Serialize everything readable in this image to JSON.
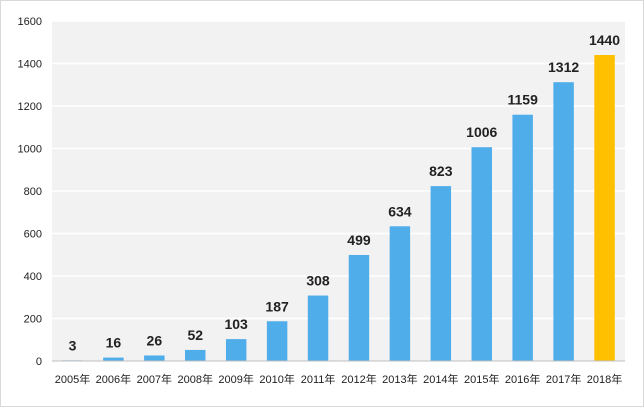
{
  "chart_data": {
    "type": "bar",
    "categories": [
      "2005年",
      "2006年",
      "2007年",
      "2008年",
      "2009年",
      "2010年",
      "2011年",
      "2012年",
      "2013年",
      "2014年",
      "2015年",
      "2016年",
      "2017年",
      "2018年"
    ],
    "values": [
      3,
      16,
      26,
      52,
      103,
      187,
      308,
      499,
      634,
      823,
      1006,
      1159,
      1312,
      1440
    ],
    "data_labels": [
      "3",
      "16",
      "26",
      "52",
      "103",
      "187",
      "308",
      "499",
      "634",
      "823",
      "1006",
      "1159",
      "1312",
      "1440"
    ],
    "yticks": [
      0,
      200,
      400,
      600,
      800,
      1000,
      1200,
      1400,
      1600
    ],
    "ytick_labels": [
      "0",
      "200",
      "400",
      "600",
      "800",
      "1000",
      "1200",
      "1400",
      "1600"
    ],
    "ylim": [
      0,
      1600
    ],
    "grid": true,
    "title": "",
    "xlabel": "",
    "ylabel": "",
    "colors": {
      "bar": "#4FADEA",
      "highlight": "#FFC000",
      "plot_bg": "#F2F2F2",
      "grid": "#FFFFFF"
    },
    "highlight_category": "2018年"
  }
}
